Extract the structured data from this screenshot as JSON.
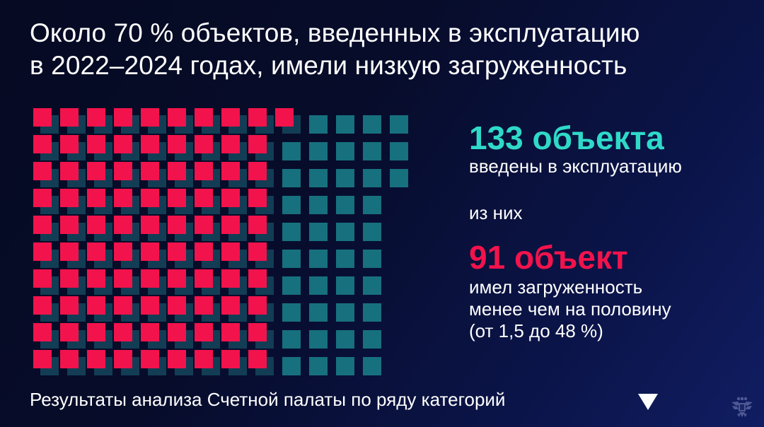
{
  "header": {
    "title_line1": "Около 70 % объектов, введенных в эксплуатацию",
    "title_line2": "в 2022–2024 годах, имели низкую загруженность"
  },
  "stats": {
    "total_value": "133 объекта",
    "total_caption": "введены в эксплуатацию",
    "connector": "из них",
    "low_value": "91 объект",
    "low_caption_line1": "имел загруженность",
    "low_caption_line2": "менее чем на половину",
    "low_caption_line3": "(от 1,5 до 48 %)"
  },
  "footer": {
    "text": "Результаты анализа Счетной палаты по ряду категорий",
    "arrow_icon": "triangle-down-icon",
    "logo_icon": "double-headed-eagle-emblem-icon"
  },
  "colors": {
    "teal_square": "#17707e",
    "teal_square_shadowed": "#133d55",
    "red_square": "#f2134c",
    "teal_text": "#2fd9c8",
    "red_text": "#f2134c",
    "background_dark": "#060a22",
    "background_light": "#101d62"
  },
  "chart_data": {
    "type": "waffle",
    "title": "Около 70 % объектов, введенных в эксплуатацию в 2022–2024 годах, имели низкую загруженность",
    "series": [
      {
        "name": "введены в эксплуатацию",
        "value": 133,
        "color": "#17707e",
        "layout": {
          "rows": 10,
          "row_counts": [
            14,
            14,
            14,
            13,
            13,
            13,
            13,
            13,
            13,
            13
          ]
        }
      },
      {
        "name": "имел загруженность менее чем на половину (от 1,5 до 48 %)",
        "value": 91,
        "color": "#f2134c",
        "layout": {
          "rows": 10,
          "row_counts": [
            10,
            9,
            9,
            9,
            9,
            9,
            9,
            9,
            9,
            9
          ]
        }
      }
    ],
    "share_low_load_pct": 70,
    "load_range_pct": [
      1.5,
      48
    ],
    "years": "2022–2024"
  }
}
